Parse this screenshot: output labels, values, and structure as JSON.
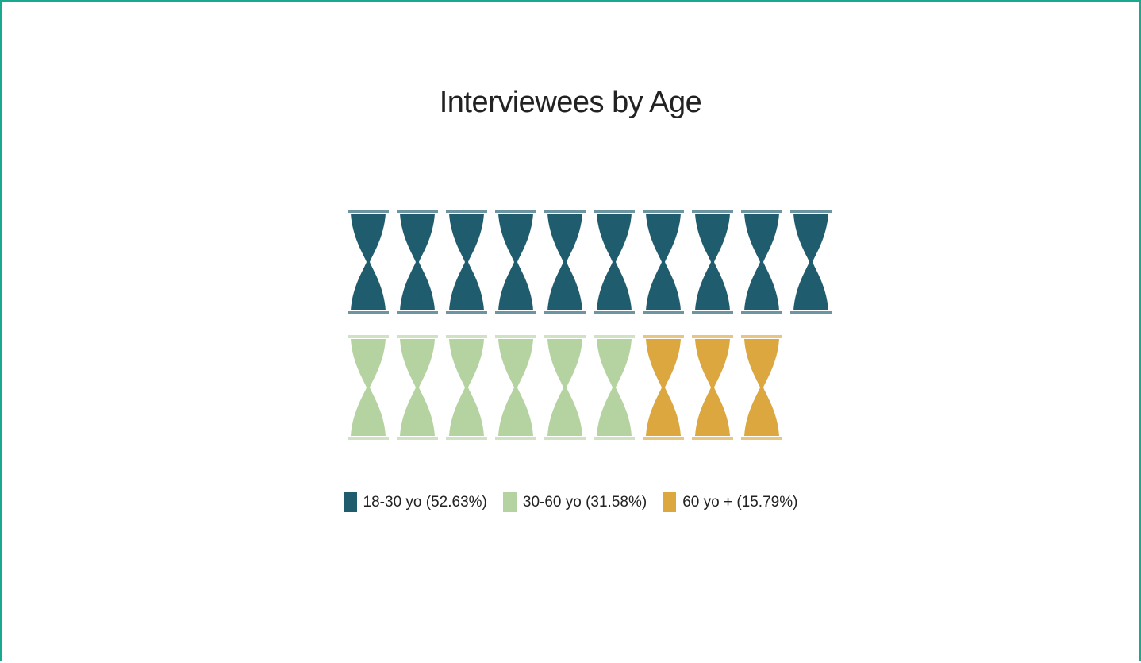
{
  "chart_data": {
    "type": "pictogram",
    "title": "Interviewees by Age",
    "icon": "hourglass-icon",
    "units_per_row": 10,
    "series": [
      {
        "name": "18-30 yo (52.63%)",
        "count": 10,
        "percent": 52.63,
        "color": "#1f5c6e"
      },
      {
        "name": "30-60 yo (31.58%)",
        "count": 6,
        "percent": 31.58,
        "color": "#b5d3a0"
      },
      {
        "name": "60 yo + (15.79%)",
        "count": 3,
        "percent": 15.79,
        "color": "#dba73e"
      }
    ],
    "legend_position": "bottom"
  }
}
